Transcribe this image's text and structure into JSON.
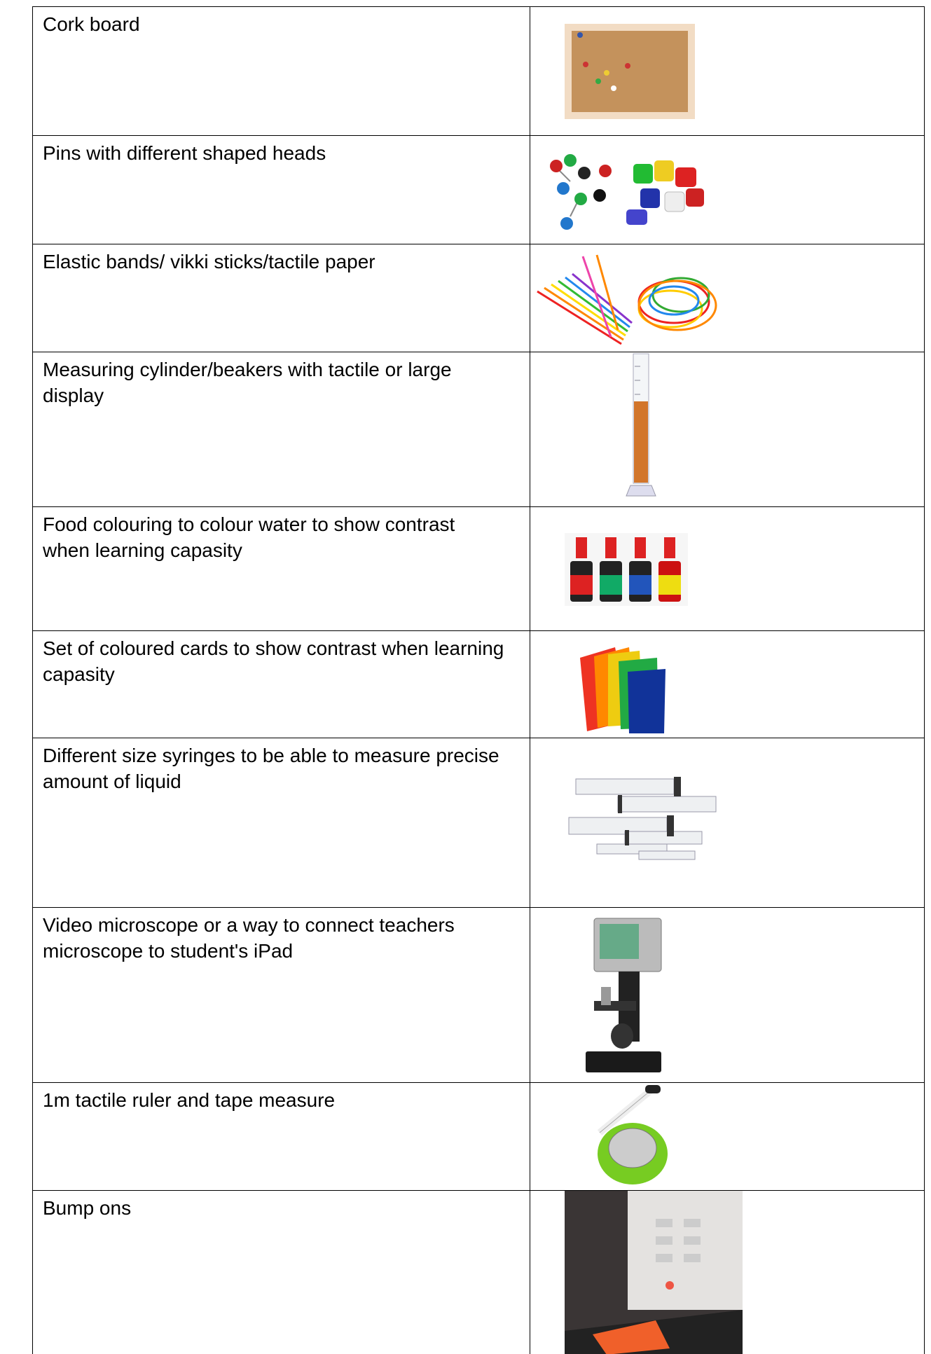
{
  "table": {
    "rows": [
      "Cork board",
      "Pins with different shaped heads",
      "Elastic bands/ vikki sticks/tactile paper",
      "Measuring cylinder/beakers with tactile or large display",
      "Food colouring to colour water to show contrast when learning capasity",
      "Set of coloured cards to show contrast when learning capasity",
      "Different size syringes to be able to measure precise amount of liquid",
      "Video microscope or a way to connect teachers microscope to student's iPad",
      "1m tactile ruler and tape measure",
      "Bump ons"
    ]
  }
}
